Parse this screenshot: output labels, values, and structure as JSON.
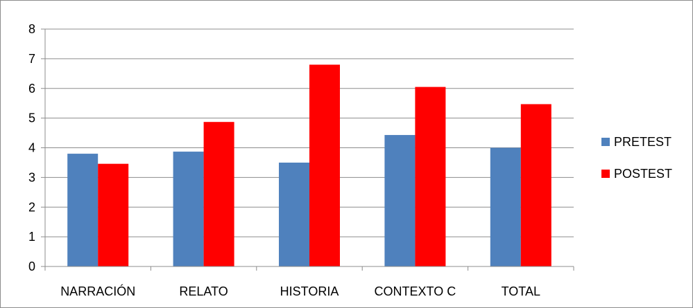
{
  "chart_data": {
    "type": "bar",
    "title": "",
    "xlabel": "",
    "ylabel": "",
    "categories": [
      "NARRACIÓN",
      "RELATO",
      "HISTORIA",
      "CONTEXTO C",
      "TOTAL"
    ],
    "series": [
      {
        "name": "PRETEST",
        "values": [
          3.8,
          3.87,
          3.5,
          4.43,
          4.0
        ],
        "color": "#4f81bd"
      },
      {
        "name": "POSTEST",
        "values": [
          3.46,
          4.87,
          6.8,
          6.05,
          5.47
        ],
        "color": "#ff0000"
      }
    ],
    "ylim": [
      0,
      8
    ],
    "yticks": [
      "0",
      "1",
      "2",
      "3",
      "4",
      "5",
      "6",
      "7",
      "8"
    ],
    "grid": true,
    "legend_position": "right",
    "axis_color": "#8c8c8c",
    "grid_color": "#8c8c8c"
  }
}
